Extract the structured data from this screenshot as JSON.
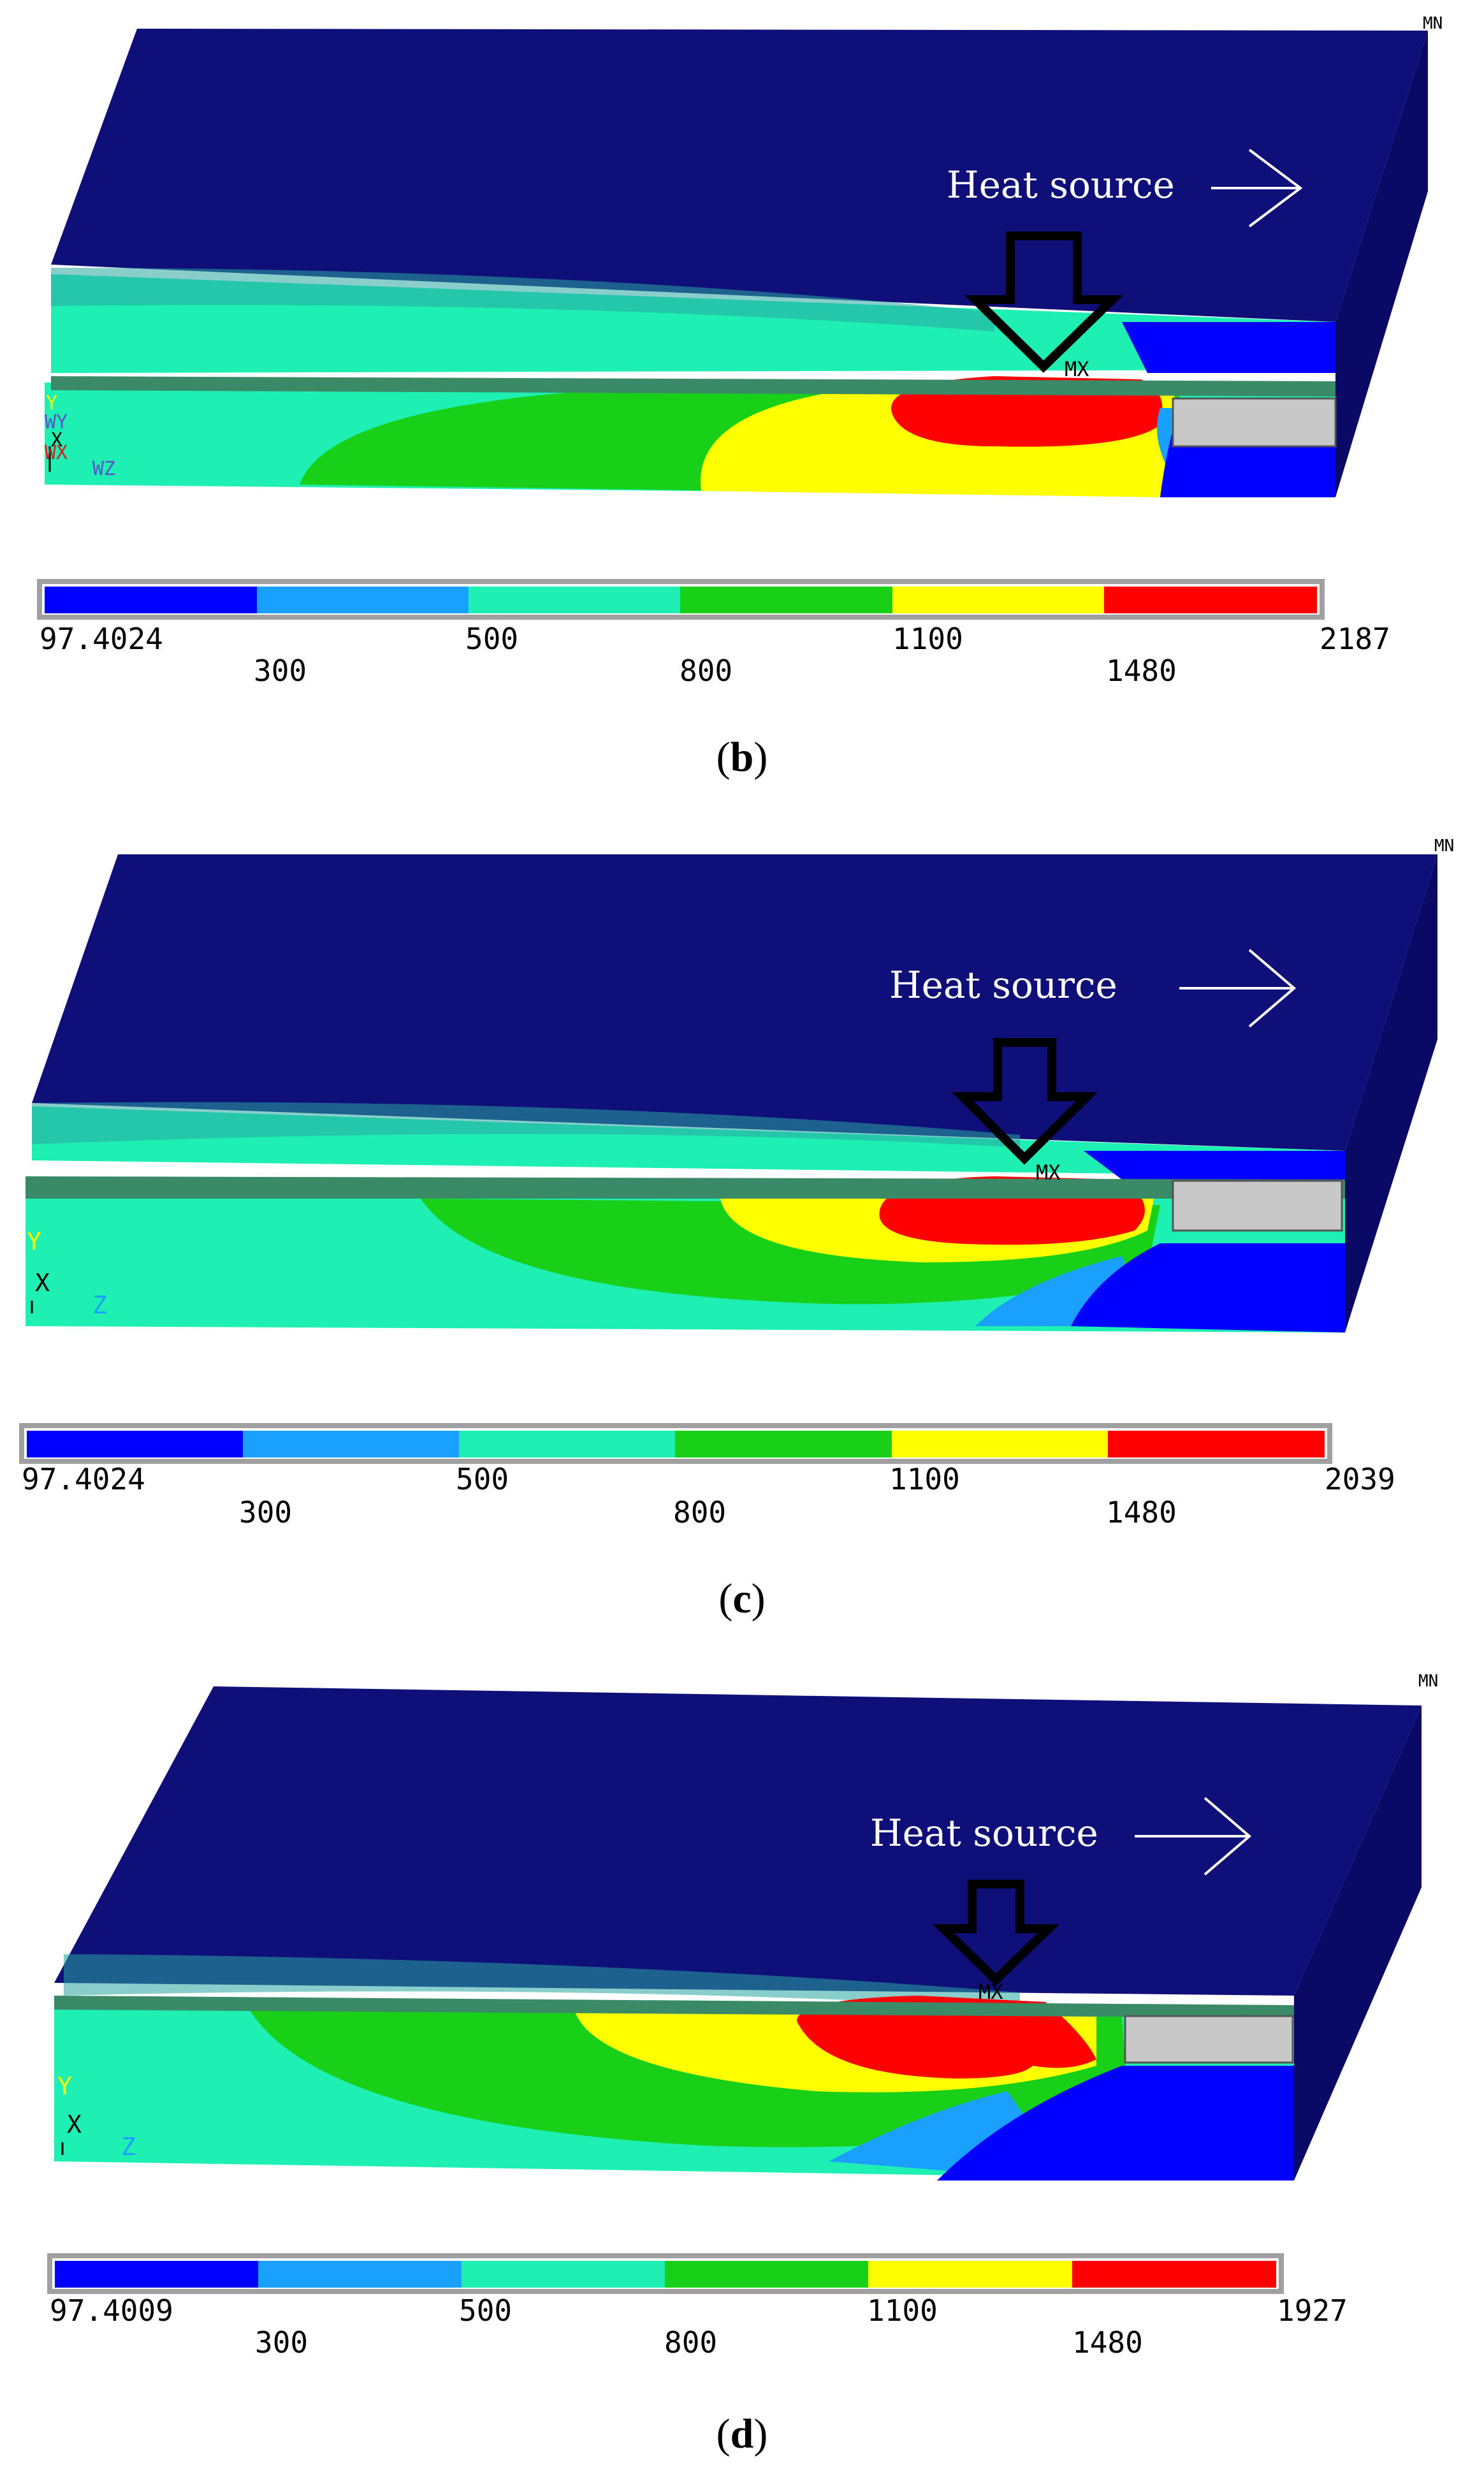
{
  "colors": {
    "background": "#ffffff",
    "plate_top": "#0f0f7a",
    "plate_side": "#0a0a66",
    "bands": [
      "#0000ff",
      "#1aa0ff",
      "#1ef0b4",
      "#18d018",
      "#ffff00",
      "#ff0000"
    ],
    "unmelted_filler": "#c8c8c8",
    "legend_frame": "#a0a0a0"
  },
  "icons": [
    "heat-direction-arrow-icon",
    "down-arrow-icon",
    "axis-triad-icon"
  ],
  "panels": [
    {
      "id": "b",
      "corner_label": "MN",
      "max_label": "MX",
      "heat_source_label": "Heat source",
      "axis_labels": [
        "Y",
        "WY",
        "X",
        "WX",
        "WZ"
      ],
      "legend_values_top": [
        "97.4024",
        "500",
        "1100",
        "2187"
      ],
      "legend_values_bottom": [
        "300",
        "800",
        "1480"
      ],
      "caption": "b"
    },
    {
      "id": "c",
      "corner_label": "MN",
      "max_label": "MX",
      "heat_source_label": "Heat source",
      "axis_labels": [
        "Y",
        "X",
        "Z"
      ],
      "legend_values_top": [
        "97.4024",
        "500",
        "1100",
        "2039"
      ],
      "legend_values_bottom": [
        "300",
        "800",
        "1480"
      ],
      "caption": "c"
    },
    {
      "id": "d",
      "corner_label": "MN",
      "max_label": "MX",
      "heat_source_label": "Heat source",
      "axis_labels": [
        "Y",
        "X",
        "Z"
      ],
      "legend_values_top": [
        "97.4009",
        "500",
        "1100",
        "1927"
      ],
      "legend_values_bottom": [
        "300",
        "800",
        "1480"
      ],
      "caption": "d"
    }
  ]
}
